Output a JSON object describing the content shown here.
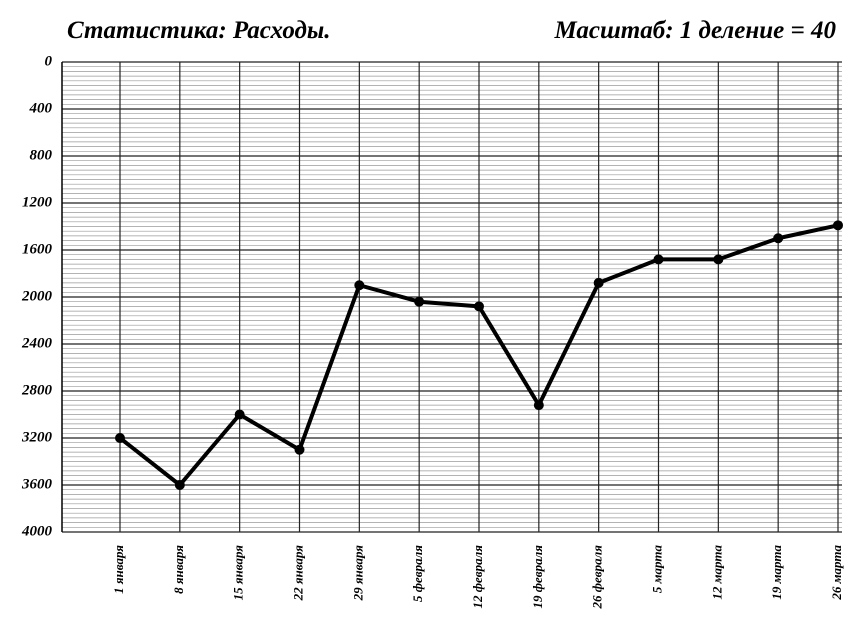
{
  "chart_data": {
    "type": "line",
    "title": "Статистика: Расходы.",
    "scale_note": "Масштаб: 1 деление = 40",
    "categories": [
      "1 января",
      "8 января",
      "15 января",
      "22 января",
      "29 января",
      "5 февраля",
      "12 февраля",
      "19 февраля",
      "26 февраля",
      "5 марта",
      "12 марта",
      "19 марта",
      "26 марта"
    ],
    "series": [
      {
        "name": "Расходы",
        "color": "#000000",
        "values": [
          3200,
          3600,
          3000,
          3300,
          1900,
          2040,
          2080,
          2920,
          1880,
          1680,
          1680,
          1500,
          1390
        ]
      }
    ],
    "ylim": [
      0,
      4000
    ],
    "y_inverted": true,
    "yticks": [
      0,
      400,
      800,
      1200,
      1600,
      2000,
      2400,
      2800,
      3200,
      3600,
      4000
    ],
    "grid": true
  }
}
